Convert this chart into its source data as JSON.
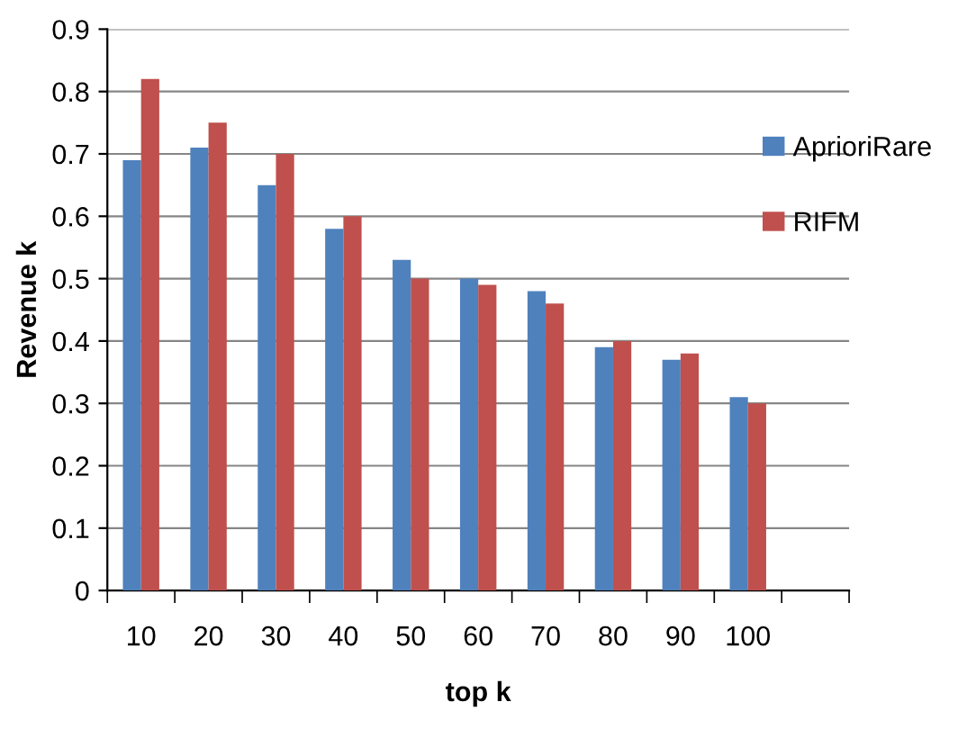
{
  "chart_data": {
    "type": "bar",
    "xlabel": "top k",
    "ylabel": "Revenue k",
    "categories": [
      "10",
      "20",
      "30",
      "40",
      "50",
      "60",
      "70",
      "80",
      "90",
      "100",
      null
    ],
    "series": [
      {
        "name": "AprioriRare",
        "color": "#4f81bd",
        "values": [
          0.69,
          0.71,
          0.65,
          0.58,
          0.53,
          0.5,
          0.48,
          0.39,
          0.37,
          0.31,
          null
        ]
      },
      {
        "name": "RIFM",
        "color": "#c0504d",
        "values": [
          0.82,
          0.75,
          0.7,
          0.6,
          0.5,
          0.49,
          0.46,
          0.4,
          0.38,
          0.3,
          null
        ]
      }
    ],
    "ylim": [
      0,
      0.9
    ],
    "yticks": [
      0,
      0.1,
      0.2,
      0.3,
      0.4,
      0.5,
      0.6,
      0.7,
      0.8,
      0.9
    ],
    "grid": "y",
    "legend": "right"
  }
}
